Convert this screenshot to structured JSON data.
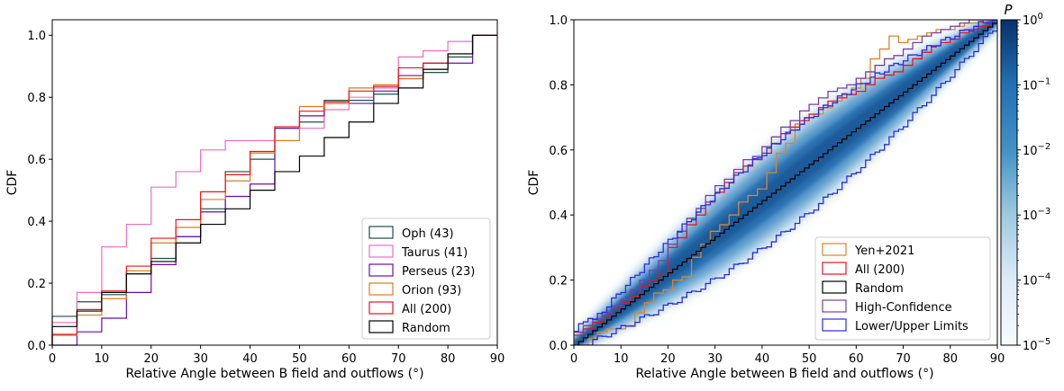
{
  "chart_data": [
    {
      "type": "step",
      "title": "",
      "xlabel": "Relative Angle between B field and outflows (°)",
      "ylabel": "CDF",
      "xlim": [
        0,
        90
      ],
      "ylim": [
        0,
        1.05
      ],
      "xticks": [
        "0",
        "10",
        "20",
        "30",
        "40",
        "50",
        "60",
        "70",
        "80",
        "90"
      ],
      "yticks": [
        "0.0",
        "0.2",
        "0.4",
        "0.6",
        "0.8",
        "1.0"
      ],
      "grid": false,
      "legend_position": "lower-right",
      "bin_edges": [
        0,
        5,
        10,
        15,
        20,
        25,
        30,
        35,
        40,
        45,
        50,
        55,
        60,
        65,
        70,
        75,
        80,
        85,
        90
      ],
      "series": [
        {
          "name": "Oph (43)",
          "color": "#1f4e4a",
          "values": [
            0.093,
            0.14,
            0.163,
            0.23,
            0.28,
            0.35,
            0.44,
            0.56,
            0.6,
            0.7,
            0.72,
            0.79,
            0.79,
            0.81,
            0.86,
            0.88,
            0.93,
            1.0
          ]
        },
        {
          "name": "Taurus (41)",
          "color": "#f06cc0",
          "values": [
            0.073,
            0.17,
            0.317,
            0.39,
            0.51,
            0.56,
            0.63,
            0.66,
            0.66,
            0.66,
            0.7,
            0.76,
            0.8,
            0.83,
            0.93,
            0.95,
            0.98,
            1.0
          ]
        },
        {
          "name": "Perseus (23)",
          "color": "#6a0dad",
          "values": [
            0.0,
            0.043,
            0.087,
            0.17,
            0.26,
            0.35,
            0.43,
            0.48,
            0.52,
            0.7,
            0.74,
            0.78,
            0.78,
            0.82,
            0.87,
            0.91,
            0.91,
            1.0
          ]
        },
        {
          "name": "Orion (93)",
          "color": "#d97d1f",
          "values": [
            0.032,
            0.097,
            0.15,
            0.24,
            0.33,
            0.38,
            0.47,
            0.53,
            0.62,
            0.66,
            0.77,
            0.78,
            0.83,
            0.84,
            0.86,
            0.89,
            0.94,
            1.0
          ]
        },
        {
          "name": "All (200)",
          "color": "#e8151b",
          "values": [
            0.035,
            0.115,
            0.175,
            0.255,
            0.345,
            0.405,
            0.495,
            0.55,
            0.625,
            0.705,
            0.755,
            0.785,
            0.82,
            0.835,
            0.895,
            0.91,
            0.94,
            1.0
          ]
        },
        {
          "name": "Random",
          "color": "#000000",
          "values": [
            0.06,
            0.11,
            0.17,
            0.23,
            0.27,
            0.33,
            0.39,
            0.44,
            0.5,
            0.56,
            0.61,
            0.67,
            0.72,
            0.78,
            0.83,
            0.89,
            0.94,
            1.0
          ]
        }
      ]
    },
    {
      "type": "heatmap",
      "title": "",
      "xlabel": "Relative Angle between B field and outflows (°)",
      "ylabel": "CDF",
      "xlim": [
        0,
        90
      ],
      "ylim": [
        0,
        1.0
      ],
      "xticks": [
        "0",
        "10",
        "20",
        "30",
        "40",
        "50",
        "60",
        "70",
        "80",
        "90"
      ],
      "yticks": [
        "0.0",
        "0.2",
        "0.4",
        "0.6",
        "0.8",
        "1.0"
      ],
      "colorbar": {
        "label": "P",
        "scale": "log",
        "range": [
          1e-05,
          1
        ],
        "ticks": [
          {
            "base": "10",
            "exp": "0"
          },
          {
            "base": "10",
            "exp": "−1"
          },
          {
            "base": "10",
            "exp": "−2"
          },
          {
            "base": "10",
            "exp": "−3"
          },
          {
            "base": "10",
            "exp": "−4"
          },
          {
            "base": "10",
            "exp": "−5"
          }
        ],
        "colormap": "Blues"
      },
      "legend_position": "lower-right",
      "series": [
        {
          "name": "Yen+2021",
          "color": "#d9862b",
          "kind": "step",
          "x": [
            0,
            3,
            5,
            7,
            9,
            11,
            13,
            15,
            17,
            19,
            21,
            23,
            25,
            27,
            29,
            31,
            33,
            35,
            37,
            39,
            41,
            43,
            45,
            47,
            49,
            51,
            53,
            55,
            57,
            59,
            61,
            63,
            65,
            67,
            69,
            71,
            73,
            75,
            77,
            79,
            81,
            83,
            85,
            87,
            88,
            90
          ],
          "y": [
            0.0,
            0.02,
            0.04,
            0.05,
            0.05,
            0.06,
            0.1,
            0.13,
            0.16,
            0.17,
            0.2,
            0.21,
            0.27,
            0.31,
            0.35,
            0.37,
            0.4,
            0.44,
            0.46,
            0.48,
            0.53,
            0.59,
            0.62,
            0.68,
            0.7,
            0.71,
            0.73,
            0.75,
            0.77,
            0.79,
            0.82,
            0.88,
            0.91,
            0.95,
            0.93,
            0.94,
            0.95,
            0.96,
            0.97,
            0.97,
            0.98,
            0.99,
            0.99,
            1.0,
            1.0,
            1.0
          ]
        },
        {
          "name": "All (200)",
          "color": "#e8151b",
          "kind": "step",
          "x": [
            0,
            2,
            4,
            6,
            8,
            10,
            12,
            14,
            16,
            18,
            20,
            22,
            24,
            26,
            28,
            30,
            32,
            34,
            36,
            38,
            40,
            42,
            44,
            46,
            48,
            50,
            52,
            54,
            56,
            58,
            60,
            62,
            64,
            66,
            68,
            70,
            72,
            74,
            76,
            78,
            80,
            82,
            84,
            86,
            88,
            90
          ],
          "y": [
            0.03,
            0.05,
            0.07,
            0.09,
            0.11,
            0.13,
            0.15,
            0.18,
            0.2,
            0.22,
            0.3,
            0.33,
            0.37,
            0.4,
            0.44,
            0.47,
            0.5,
            0.53,
            0.55,
            0.57,
            0.59,
            0.62,
            0.65,
            0.67,
            0.69,
            0.71,
            0.73,
            0.75,
            0.76,
            0.77,
            0.78,
            0.8,
            0.82,
            0.83,
            0.84,
            0.86,
            0.88,
            0.9,
            0.92,
            0.93,
            0.94,
            0.96,
            0.97,
            0.98,
            0.99,
            1.0
          ]
        },
        {
          "name": "Random",
          "color": "#000000",
          "kind": "diagonal_step"
        },
        {
          "name": "High-Confidence",
          "color": "#7b3fa0",
          "kind": "step",
          "x": [
            0,
            2,
            4,
            6,
            8,
            10,
            12,
            14,
            16,
            18,
            20,
            22,
            24,
            26,
            28,
            30,
            32,
            34,
            36,
            38,
            40,
            42,
            44,
            46,
            48,
            50,
            52,
            54,
            56,
            58,
            60,
            62,
            64,
            66,
            68,
            70,
            72,
            74,
            76,
            78,
            80,
            82,
            84,
            86,
            88,
            90
          ],
          "y": [
            0.04,
            0.06,
            0.08,
            0.1,
            0.12,
            0.14,
            0.17,
            0.2,
            0.23,
            0.26,
            0.31,
            0.35,
            0.39,
            0.42,
            0.46,
            0.49,
            0.51,
            0.54,
            0.57,
            0.58,
            0.61,
            0.64,
            0.67,
            0.69,
            0.72,
            0.74,
            0.76,
            0.78,
            0.79,
            0.8,
            0.82,
            0.84,
            0.86,
            0.88,
            0.89,
            0.91,
            0.93,
            0.95,
            0.96,
            0.97,
            0.98,
            0.99,
            1.0,
            1.0,
            1.0,
            1.0
          ]
        },
        {
          "name": "Lower/Upper Limits",
          "color": "#2a2ae8",
          "kind": "envelope"
        }
      ]
    }
  ]
}
